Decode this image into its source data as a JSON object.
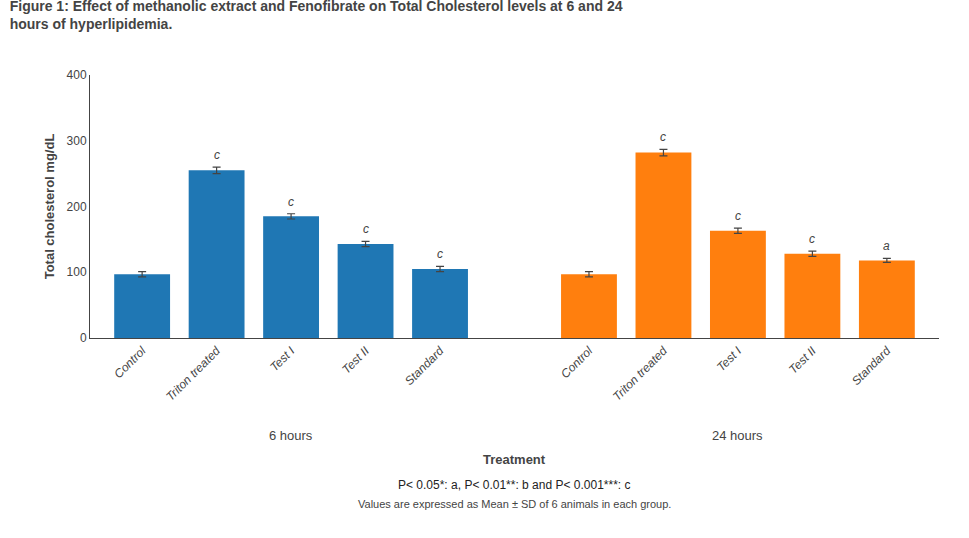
{
  "chart_data": {
    "type": "bar",
    "title": "Figure 1: Effect of methanolic extract and Fenofibrate on Total Cholesterol levels at 6 and 24\nhours of hyperlipidemia.",
    "xlabel": "Treatment",
    "ylabel": "Total cholesterol mg/dL",
    "categories": [
      "Control",
      "Triton treated",
      "Test I",
      "Test II",
      "Standard"
    ],
    "series": [
      {
        "name": "6 hours",
        "values": [
          97,
          255,
          185,
          143,
          105
        ],
        "errors": [
          4,
          5,
          4,
          4,
          4
        ],
        "significance": [
          null,
          "c",
          "c",
          "c",
          "c"
        ]
      },
      {
        "name": "24 hours",
        "values": [
          97,
          282,
          163,
          128,
          118
        ],
        "errors": [
          4,
          5,
          4,
          4,
          3
        ],
        "significance": [
          null,
          "c",
          "c",
          "c",
          "a"
        ]
      }
    ],
    "ylim": [
      0,
      400
    ],
    "yticks": [
      0,
      100,
      200,
      300,
      400
    ],
    "grid": false,
    "footnotes": [
      "P< 0.05*: a, P< 0.01**: b and P< 0.001***: c",
      "Values are expressed as Mean ± SD of 6 animals in each group."
    ]
  }
}
